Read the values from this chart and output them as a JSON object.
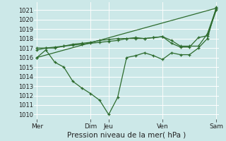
{
  "xlabel": "Pression niveau de la mer( hPa )",
  "bg_color": "#cce8e8",
  "grid_color": "#ffffff",
  "line_color": "#2d6b2d",
  "ylim": [
    1009.5,
    1021.8
  ],
  "yticks": [
    1010,
    1011,
    1012,
    1013,
    1014,
    1015,
    1016,
    1017,
    1018,
    1019,
    1020,
    1021
  ],
  "xtick_labels": [
    "Mer",
    "Dim",
    "Jeu",
    "Ven",
    "Sam"
  ],
  "xtick_positions": [
    0,
    6,
    8,
    14,
    20
  ],
  "vline_positions": [
    0,
    6,
    8,
    14,
    20
  ],
  "xlim": [
    -0.3,
    20.3
  ],
  "series": [
    {
      "x": [
        0,
        1,
        2,
        3,
        4,
        5,
        6,
        7,
        8,
        9,
        10,
        11,
        12,
        13,
        14,
        15,
        16,
        17,
        18,
        19,
        20
      ],
      "y": [
        1016.0,
        1016.8,
        1015.5,
        1015.0,
        1013.5,
        1012.8,
        1012.2,
        1011.5,
        1010.0,
        1011.8,
        1016.0,
        1016.2,
        1016.5,
        1016.2,
        1015.8,
        1016.5,
        1016.3,
        1016.3,
        1017.0,
        1018.0,
        1021.3
      ]
    },
    {
      "x": [
        0,
        1,
        2,
        3,
        4,
        5,
        6,
        7,
        8,
        9,
        10,
        11,
        12,
        13,
        14,
        15,
        16,
        17,
        18,
        19,
        20
      ],
      "y": [
        1017.0,
        1017.0,
        1017.1,
        1017.2,
        1017.3,
        1017.4,
        1017.5,
        1017.6,
        1017.7,
        1017.8,
        1018.0,
        1018.1,
        1018.0,
        1018.1,
        1018.2,
        1017.8,
        1017.2,
        1017.2,
        1017.2,
        1018.5,
        1021.2
      ]
    },
    {
      "x": [
        0,
        20
      ],
      "y": [
        1016.0,
        1021.2
      ]
    },
    {
      "x": [
        0,
        1,
        2,
        3,
        4,
        5,
        6,
        7,
        8,
        9,
        10,
        11,
        12,
        13,
        14,
        15,
        16,
        17,
        18,
        19,
        20
      ],
      "y": [
        1016.8,
        1017.0,
        1017.0,
        1017.2,
        1017.4,
        1017.5,
        1017.6,
        1017.8,
        1017.9,
        1018.0,
        1018.0,
        1018.0,
        1018.0,
        1018.1,
        1018.2,
        1017.5,
        1017.1,
        1017.1,
        1018.1,
        1018.3,
        1021.0
      ]
    }
  ]
}
